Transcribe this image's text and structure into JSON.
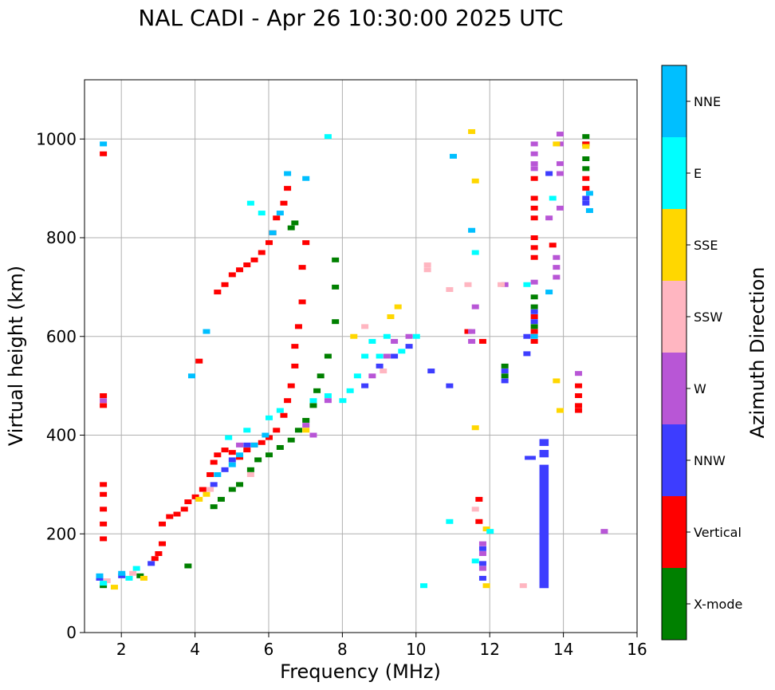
{
  "chart_data": {
    "type": "scatter",
    "title": "NAL CADI - Apr 26 10:30:00 2025 UTC",
    "xlabel": "Frequency (MHz)",
    "ylabel": "Virtual height (km)",
    "xlim": [
      1,
      16
    ],
    "ylim": [
      0,
      1120
    ],
    "x_ticks": [
      2,
      4,
      6,
      8,
      10,
      12,
      14,
      16
    ],
    "y_ticks": [
      0,
      200,
      400,
      600,
      800,
      1000
    ],
    "grid": true,
    "colorbar": {
      "label": "Azimuth Direction",
      "categories": [
        {
          "name": "X-mode",
          "color": "#008000"
        },
        {
          "name": "Vertical",
          "color": "#ff0000"
        },
        {
          "name": "NNW",
          "color": "#3d3dff"
        },
        {
          "name": "W",
          "color": "#b856d6"
        },
        {
          "name": "SSW",
          "color": "#ffb6c1"
        },
        {
          "name": "SSE",
          "color": "#ffd700"
        },
        {
          "name": "E",
          "color": "#00ffff"
        },
        {
          "name": "NNE",
          "color": "#00bfff"
        }
      ]
    },
    "series": [
      {
        "name": "X-mode",
        "color": "#008000",
        "points": [
          [
            1.5,
            95
          ],
          [
            2.5,
            115
          ],
          [
            3.8,
            135
          ],
          [
            4.5,
            255
          ],
          [
            4.7,
            270
          ],
          [
            5.0,
            290
          ],
          [
            5.2,
            300
          ],
          [
            5.5,
            330
          ],
          [
            5.7,
            350
          ],
          [
            6.0,
            360
          ],
          [
            6.3,
            375
          ],
          [
            6.6,
            390
          ],
          [
            6.8,
            410
          ],
          [
            7.0,
            430
          ],
          [
            7.2,
            460
          ],
          [
            7.3,
            490
          ],
          [
            7.4,
            520
          ],
          [
            7.6,
            560
          ],
          [
            7.8,
            630
          ],
          [
            7.8,
            700
          ],
          [
            7.8,
            755
          ],
          [
            6.6,
            820
          ],
          [
            6.7,
            830
          ],
          [
            13.2,
            680
          ],
          [
            13.2,
            660
          ],
          [
            13.2,
            620
          ],
          [
            14.6,
            1005
          ],
          [
            14.6,
            990
          ],
          [
            14.6,
            960
          ],
          [
            14.6,
            940
          ],
          [
            12.4,
            540
          ],
          [
            12.4,
            520
          ]
        ]
      },
      {
        "name": "Vertical",
        "color": "#ff0000",
        "points": [
          [
            1.5,
            190
          ],
          [
            1.5,
            220
          ],
          [
            1.5,
            250
          ],
          [
            1.5,
            280
          ],
          [
            1.5,
            300
          ],
          [
            1.5,
            460
          ],
          [
            1.5,
            480
          ],
          [
            1.5,
            970
          ],
          [
            2.9,
            150
          ],
          [
            3.0,
            160
          ],
          [
            3.1,
            180
          ],
          [
            3.1,
            220
          ],
          [
            3.3,
            235
          ],
          [
            3.5,
            240
          ],
          [
            3.7,
            250
          ],
          [
            3.8,
            265
          ],
          [
            4.0,
            275
          ],
          [
            4.2,
            290
          ],
          [
            4.4,
            320
          ],
          [
            4.5,
            345
          ],
          [
            4.6,
            360
          ],
          [
            4.8,
            370
          ],
          [
            5.0,
            365
          ],
          [
            5.2,
            355
          ],
          [
            5.4,
            370
          ],
          [
            5.6,
            380
          ],
          [
            5.8,
            385
          ],
          [
            6.0,
            395
          ],
          [
            6.2,
            410
          ],
          [
            6.4,
            440
          ],
          [
            6.5,
            470
          ],
          [
            6.6,
            500
          ],
          [
            6.7,
            540
          ],
          [
            6.7,
            580
          ],
          [
            6.8,
            620
          ],
          [
            6.9,
            670
          ],
          [
            6.9,
            740
          ],
          [
            7.0,
            790
          ],
          [
            4.6,
            690
          ],
          [
            4.8,
            705
          ],
          [
            5.0,
            725
          ],
          [
            5.2,
            735
          ],
          [
            5.4,
            745
          ],
          [
            5.6,
            755
          ],
          [
            5.8,
            770
          ],
          [
            6.0,
            790
          ],
          [
            6.1,
            810
          ],
          [
            6.2,
            840
          ],
          [
            6.4,
            870
          ],
          [
            6.5,
            900
          ],
          [
            4.1,
            550
          ],
          [
            11.7,
            270
          ],
          [
            11.7,
            225
          ],
          [
            11.8,
            590
          ],
          [
            11.4,
            610
          ],
          [
            13.2,
            920
          ],
          [
            13.2,
            880
          ],
          [
            13.2,
            860
          ],
          [
            13.2,
            840
          ],
          [
            13.2,
            800
          ],
          [
            13.2,
            780
          ],
          [
            13.2,
            760
          ],
          [
            13.2,
            640
          ],
          [
            13.2,
            610
          ],
          [
            13.2,
            590
          ],
          [
            13.7,
            785
          ],
          [
            14.4,
            500
          ],
          [
            14.4,
            480
          ],
          [
            14.4,
            460
          ],
          [
            14.4,
            450
          ],
          [
            14.6,
            990
          ],
          [
            14.6,
            920
          ],
          [
            14.6,
            900
          ]
        ]
      },
      {
        "name": "NNW",
        "color": "#3d3dff",
        "points": [
          [
            1.4,
            110
          ],
          [
            2.0,
            115
          ],
          [
            2.8,
            140
          ],
          [
            4.5,
            300
          ],
          [
            4.8,
            330
          ],
          [
            5.0,
            350
          ],
          [
            5.4,
            380
          ],
          [
            8.6,
            500
          ],
          [
            9.0,
            540
          ],
          [
            9.4,
            560
          ],
          [
            9.8,
            580
          ],
          [
            10.4,
            530
          ],
          [
            10.9,
            500
          ],
          [
            11.8,
            170
          ],
          [
            11.8,
            140
          ],
          [
            11.8,
            110
          ],
          [
            13.0,
            600
          ],
          [
            13.0,
            565
          ],
          [
            13.6,
            930
          ],
          [
            13.2,
            650
          ],
          [
            13.2,
            630
          ],
          [
            14.6,
            880
          ],
          [
            14.6,
            870
          ],
          [
            12.4,
            530
          ],
          [
            12.4,
            510
          ]
        ]
      },
      {
        "name": "W",
        "color": "#b856d6",
        "points": [
          [
            5.2,
            380
          ],
          [
            7.2,
            400
          ],
          [
            7.0,
            420
          ],
          [
            8.8,
            520
          ],
          [
            9.2,
            560
          ],
          [
            9.4,
            590
          ],
          [
            9.8,
            600
          ],
          [
            11.6,
            660
          ],
          [
            11.5,
            590
          ],
          [
            11.5,
            610
          ],
          [
            11.8,
            180
          ],
          [
            11.8,
            160
          ],
          [
            11.8,
            130
          ],
          [
            12.4,
            705
          ],
          [
            13.2,
            990
          ],
          [
            13.2,
            970
          ],
          [
            13.2,
            950
          ],
          [
            13.2,
            940
          ],
          [
            13.2,
            710
          ],
          [
            13.6,
            840
          ],
          [
            13.8,
            760
          ],
          [
            13.8,
            740
          ],
          [
            13.8,
            720
          ],
          [
            13.9,
            1010
          ],
          [
            13.9,
            990
          ],
          [
            13.9,
            950
          ],
          [
            13.9,
            930
          ],
          [
            13.9,
            860
          ],
          [
            14.4,
            525
          ],
          [
            15.1,
            205
          ],
          [
            1.5,
            470
          ],
          [
            7.6,
            470
          ]
        ]
      },
      {
        "name": "SSW",
        "color": "#ffb6c1",
        "points": [
          [
            1.6,
            105
          ],
          [
            2.3,
            120
          ],
          [
            4.4,
            290
          ],
          [
            5.5,
            320
          ],
          [
            8.6,
            620
          ],
          [
            9.1,
            530
          ],
          [
            10.3,
            745
          ],
          [
            10.3,
            735
          ],
          [
            10.9,
            695
          ],
          [
            11.4,
            705
          ],
          [
            12.9,
            95
          ],
          [
            12.3,
            705
          ],
          [
            11.6,
            250
          ]
        ]
      },
      {
        "name": "SSE",
        "color": "#ffd700",
        "points": [
          [
            1.8,
            92
          ],
          [
            2.6,
            110
          ],
          [
            4.1,
            270
          ],
          [
            4.3,
            280
          ],
          [
            7.0,
            410
          ],
          [
            8.3,
            600
          ],
          [
            9.3,
            640
          ],
          [
            9.5,
            660
          ],
          [
            11.5,
            1015
          ],
          [
            11.6,
            915
          ],
          [
            11.6,
            415
          ],
          [
            11.9,
            210
          ],
          [
            11.9,
            95
          ],
          [
            13.8,
            990
          ],
          [
            13.9,
            450
          ],
          [
            13.8,
            510
          ],
          [
            14.6,
            985
          ]
        ]
      },
      {
        "name": "E",
        "color": "#00ffff",
        "points": [
          [
            1.5,
            100
          ],
          [
            2.2,
            110
          ],
          [
            2.4,
            130
          ],
          [
            4.9,
            395
          ],
          [
            5.4,
            410
          ],
          [
            6.0,
            435
          ],
          [
            6.3,
            450
          ],
          [
            7.2,
            470
          ],
          [
            7.6,
            480
          ],
          [
            8.0,
            470
          ],
          [
            8.2,
            490
          ],
          [
            8.4,
            520
          ],
          [
            8.6,
            560
          ],
          [
            8.8,
            590
          ],
          [
            9.0,
            560
          ],
          [
            9.2,
            600
          ],
          [
            9.6,
            570
          ],
          [
            10.0,
            600
          ],
          [
            7.6,
            1005
          ],
          [
            5.5,
            870
          ],
          [
            5.8,
            850
          ],
          [
            11.6,
            770
          ],
          [
            10.2,
            95
          ],
          [
            10.9,
            225
          ],
          [
            12.0,
            205
          ],
          [
            13.0,
            705
          ],
          [
            13.7,
            880
          ],
          [
            11.6,
            145
          ]
        ]
      },
      {
        "name": "NNE",
        "color": "#00bfff",
        "points": [
          [
            1.5,
            990
          ],
          [
            1.4,
            115
          ],
          [
            2.0,
            120
          ],
          [
            3.9,
            520
          ],
          [
            4.3,
            610
          ],
          [
            4.6,
            320
          ],
          [
            5.0,
            340
          ],
          [
            5.2,
            360
          ],
          [
            5.6,
            380
          ],
          [
            5.9,
            400
          ],
          [
            6.1,
            810
          ],
          [
            6.3,
            850
          ],
          [
            6.5,
            930
          ],
          [
            7.0,
            920
          ],
          [
            11.0,
            965
          ],
          [
            11.5,
            815
          ],
          [
            14.7,
            855
          ],
          [
            14.7,
            890
          ],
          [
            13.2,
            600
          ],
          [
            13.6,
            690
          ]
        ]
      },
      {
        "name": "NNW-bar",
        "color": "#3d3dff",
        "points": []
      }
    ]
  }
}
